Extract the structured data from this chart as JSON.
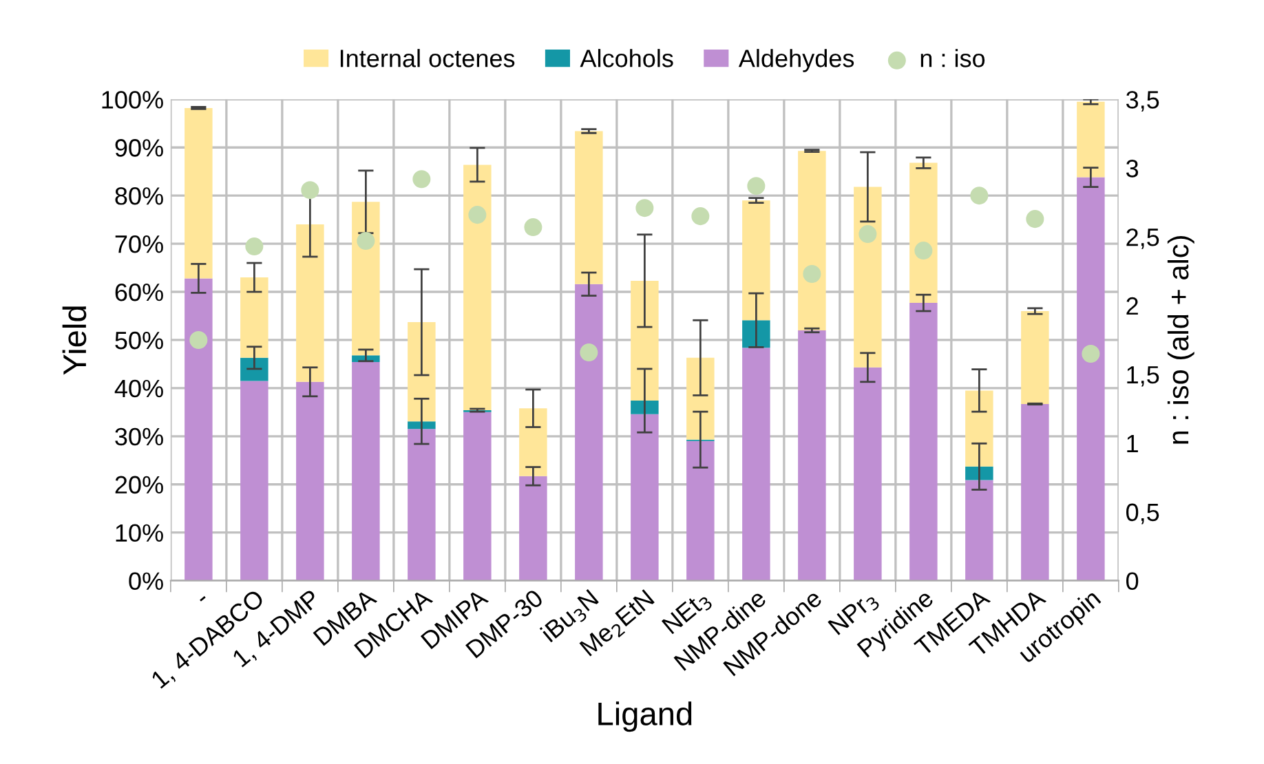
{
  "chart_data": {
    "type": "bar",
    "stacked": true,
    "xlabel": "Ligand",
    "ylabel": "Yield",
    "y2label": "n : iso (ald + alc)",
    "categories": [
      "-",
      "1, 4-DABCO",
      "1, 4-DMP",
      "DMBA",
      "DMCHA",
      "DMIPA",
      "DMP-30",
      "iBu$_{3}$N",
      "Me$_{2}$EtN",
      "NEt$_{3}$",
      "NMP-dine",
      "NMP-done",
      "NPr$_{3}$",
      "Pyridine",
      "TMEDA",
      "TMHDA",
      "urotropin"
    ],
    "series": [
      {
        "name": "Aldehydes",
        "color": "#bf8fd3",
        "values": [
          62.8,
          41.5,
          41.3,
          45.4,
          31.5,
          35.0,
          21.7,
          61.6,
          34.6,
          29.0,
          48.4,
          52.0,
          44.3,
          57.7,
          20.9,
          36.7,
          83.8
        ],
        "errors": [
          3,
          null,
          3,
          null,
          null,
          null,
          1.9,
          2.4,
          null,
          null,
          null,
          0.4,
          3,
          1.7,
          null,
          0.1,
          2
        ]
      },
      {
        "name": "Alcohols",
        "color": "#1497a6",
        "values": [
          null,
          4.8,
          null,
          1.4,
          1.6,
          0.4,
          null,
          null,
          2.8,
          0.3,
          5.7,
          null,
          null,
          null,
          2.8,
          null,
          null
        ],
        "errors": [
          null,
          2.3,
          null,
          1.2,
          4.7,
          0.3,
          null,
          null,
          6.6,
          5.8,
          5.6,
          null,
          null,
          null,
          4.8,
          null,
          null
        ]
      },
      {
        "name": "Internal octenes",
        "color": "#ffe699",
        "values": [
          35.4,
          16.7,
          32.7,
          31.9,
          20.6,
          51.0,
          14.1,
          31.8,
          24.9,
          17.0,
          24.9,
          37.3,
          37.5,
          29.1,
          15.8,
          19.3,
          15.7
        ],
        "errors": [
          0.2,
          3,
          6.7,
          6.5,
          11,
          3.5,
          3.9,
          0.4,
          9.6,
          7.8,
          0.5,
          0.2,
          7.2,
          1.1,
          4.4,
          0.6,
          0.5
        ]
      },
      {
        "name": "n : iso",
        "type": "scatter",
        "axis": "y2",
        "marker": "circle",
        "color": "#c5dcb0",
        "values": [
          1.75,
          2.43,
          2.84,
          2.47,
          2.92,
          2.66,
          2.57,
          1.66,
          2.71,
          2.65,
          2.87,
          2.23,
          2.52,
          2.4,
          2.8,
          2.63,
          1.65
        ]
      }
    ],
    "ylim": [
      0,
      100
    ],
    "yticks": [
      {
        "value": 0,
        "label": "0%"
      },
      {
        "value": 10,
        "label": "10%"
      },
      {
        "value": 20,
        "label": "20%"
      },
      {
        "value": 30,
        "label": "30%"
      },
      {
        "value": 40,
        "label": "40%"
      },
      {
        "value": 50,
        "label": "50%"
      },
      {
        "value": 60,
        "label": "60%"
      },
      {
        "value": 70,
        "label": "70%"
      },
      {
        "value": 80,
        "label": "80%"
      },
      {
        "value": 90,
        "label": "90%"
      },
      {
        "value": 100,
        "label": "100%"
      }
    ],
    "y2lim": [
      0,
      3.5
    ],
    "y2ticks": [
      0,
      {
        "value": 0.5,
        "label": "0,5"
      },
      1,
      {
        "value": 1.5,
        "label": "1,5"
      },
      2,
      {
        "value": 2.5,
        "label": "2,5"
      },
      3,
      {
        "value": 3.5,
        "label": "3,5"
      }
    ],
    "grid": true,
    "legend": "top"
  }
}
